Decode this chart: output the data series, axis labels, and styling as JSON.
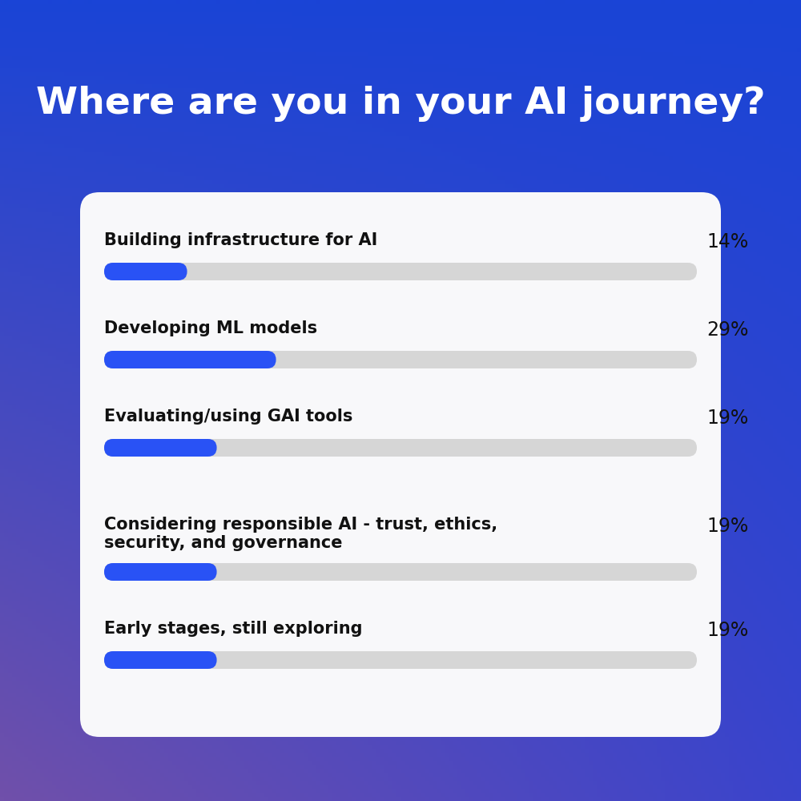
{
  "title": "Where are you in your AI journey?",
  "title_color": "#ffffff",
  "title_fontsize": 34,
  "bg_color_topleft": "#2244dd",
  "bg_color_topright": "#1a3fd4",
  "bg_color_bottomleft": "#7b5bb5",
  "bg_color_bottomright": "#3344cc",
  "card_color": "#f8f8fa",
  "bar_color": "#2952f5",
  "bar_bg_color": "#d6d6d6",
  "categories": [
    "Building infrastructure for AI",
    "Developing ML models",
    "Evaluating/using GAI tools",
    "Considering responsible AI - trust, ethics,\nsecurity, and governance",
    "Early stages, still exploring"
  ],
  "values": [
    14,
    29,
    19,
    19,
    19
  ],
  "label_fontsize": 15,
  "pct_fontsize": 17,
  "label_color": "#111111",
  "pct_color": "#111111"
}
